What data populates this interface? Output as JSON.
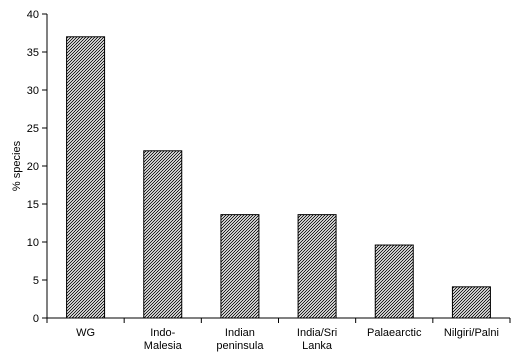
{
  "chart_data": {
    "type": "bar",
    "title": "",
    "xlabel": "",
    "ylabel": "% species",
    "ylim": [
      0,
      40
    ],
    "yticks": [
      0,
      5,
      10,
      15,
      20,
      25,
      30,
      35,
      40
    ],
    "grid": false,
    "bar_fill": "diagonal hatch",
    "categories": [
      [
        "WG"
      ],
      [
        "Indo-",
        "Malesia"
      ],
      [
        "Indian",
        "peninsula"
      ],
      [
        "India/Sri",
        "Lanka"
      ],
      [
        "Palaearctic"
      ],
      [
        "Nilgiri/Palni"
      ]
    ],
    "values": [
      37,
      22,
      13.6,
      13.6,
      9.6,
      4.1
    ]
  }
}
